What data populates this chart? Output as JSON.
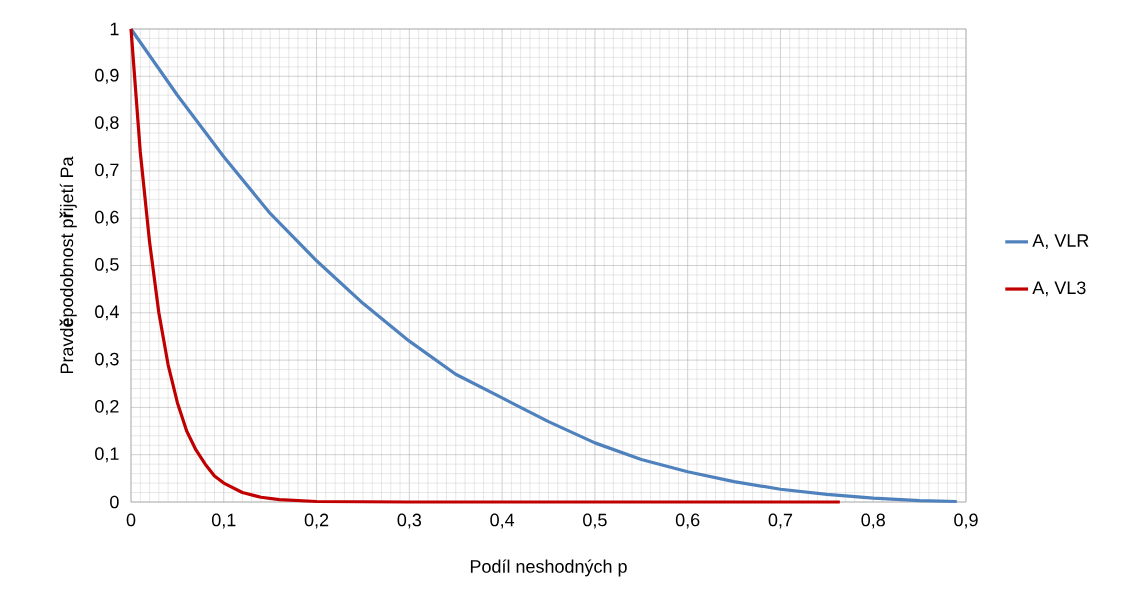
{
  "chart_data": {
    "type": "line",
    "xlabel": "Podíl neshodných p",
    "ylabel": "Pravd**ě**podobnost p**ř**ijetí Pa",
    "xlim": [
      0,
      0.9
    ],
    "ylim": [
      0,
      1
    ],
    "xticks": [
      0,
      {
        "value": 0.1,
        "label": "0,1"
      },
      {
        "value": 0.2,
        "label": "0,2"
      },
      {
        "value": 0.3,
        "label": "0,3"
      },
      {
        "value": 0.4,
        "label": "0,4"
      },
      {
        "value": 0.5,
        "label": "0,5"
      },
      {
        "value": 0.6,
        "label": "0,6"
      },
      {
        "value": 0.7,
        "label": "0,7"
      },
      {
        "value": 0.8,
        "label": "0,8"
      },
      {
        "value": 0.9,
        "label": "0,9"
      }
    ],
    "yticks": [
      0,
      {
        "value": 0.1,
        "label": "0,1"
      },
      {
        "value": 0.2,
        "label": "0,2"
      },
      {
        "value": 0.3,
        "label": "0,3"
      },
      {
        "value": 0.4,
        "label": "0,4"
      },
      {
        "value": 0.5,
        "label": "0,5"
      },
      {
        "value": 0.6,
        "label": "0,6"
      },
      {
        "value": 0.7,
        "label": "0,7"
      },
      {
        "value": 0.8,
        "label": "0,8"
      },
      {
        "value": 0.9,
        "label": "0,9"
      },
      1
    ],
    "grid": true,
    "legend": "right",
    "marker": "none",
    "line_style": "solid",
    "series": [
      {
        "name": "A, VLR",
        "color": "#4f81bd",
        "x": [
          0,
          0.05,
          0.1,
          0.15,
          0.2,
          0.25,
          0.3,
          0.35,
          0.4,
          0.45,
          0.5,
          0.55,
          0.6,
          0.65,
          0.7,
          0.75,
          0.8,
          0.85,
          0.89
        ],
        "values": [
          1,
          0.86,
          0.73,
          0.61,
          0.51,
          0.42,
          0.34,
          0.27,
          0.22,
          0.17,
          0.125,
          0.09,
          0.064,
          0.043,
          0.027,
          0.016,
          0.008,
          0.003,
          0.001
        ]
      },
      {
        "name": "A, VL3",
        "color": "#c00000",
        "x": [
          0,
          0.01,
          0.02,
          0.03,
          0.04,
          0.05,
          0.06,
          0.07,
          0.08,
          0.09,
          0.1,
          0.12,
          0.14,
          0.16,
          0.2,
          0.3,
          0.5,
          0.764
        ],
        "values": [
          1,
          0.74,
          0.55,
          0.4,
          0.29,
          0.21,
          0.15,
          0.11,
          0.08,
          0.055,
          0.04,
          0.02,
          0.01,
          0.005,
          0.001,
          0,
          0,
          0
        ]
      }
    ]
  }
}
